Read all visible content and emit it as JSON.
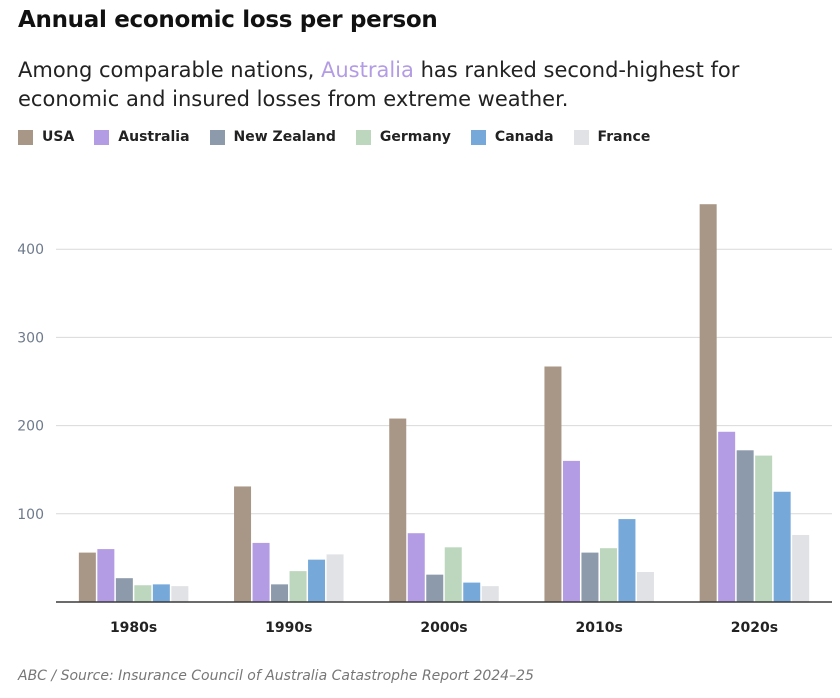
{
  "header": {
    "title": "Annual economic loss per person",
    "subtitle_before": "Among comparable nations, ",
    "subtitle_highlight": "Australia",
    "subtitle_after": " has ranked second-highest for economic and insured losses from extreme weather."
  },
  "footer": {
    "source": "ABC / Source: Insurance Council of Australia Catastrophe Report 2024–25"
  },
  "chart_data": {
    "type": "bar",
    "title": "Annual economic loss per person",
    "xlabel": "",
    "ylabel": "",
    "categories": [
      "1980s",
      "1990s",
      "2000s",
      "2010s",
      "2020s"
    ],
    "series": [
      {
        "name": "USA",
        "color": "#a89686",
        "values": [
          56,
          131,
          208,
          267,
          451
        ]
      },
      {
        "name": "Australia",
        "color": "#b39ce4",
        "values": [
          60,
          67,
          78,
          160,
          193
        ]
      },
      {
        "name": "New Zealand",
        "color": "#8d9aab",
        "values": [
          27,
          20,
          31,
          56,
          172
        ]
      },
      {
        "name": "Germany",
        "color": "#bcd7bd",
        "values": [
          19,
          35,
          62,
          61,
          166
        ]
      },
      {
        "name": "Canada",
        "color": "#76a9da",
        "values": [
          20,
          48,
          22,
          94,
          125
        ]
      },
      {
        "name": "France",
        "color": "#e1e2e5",
        "values": [
          18,
          54,
          18,
          34,
          76
        ]
      }
    ],
    "yticks": [
      100,
      200,
      300,
      400
    ],
    "ylim": [
      0,
      460
    ],
    "grid": true,
    "legend_position": "top-left"
  }
}
